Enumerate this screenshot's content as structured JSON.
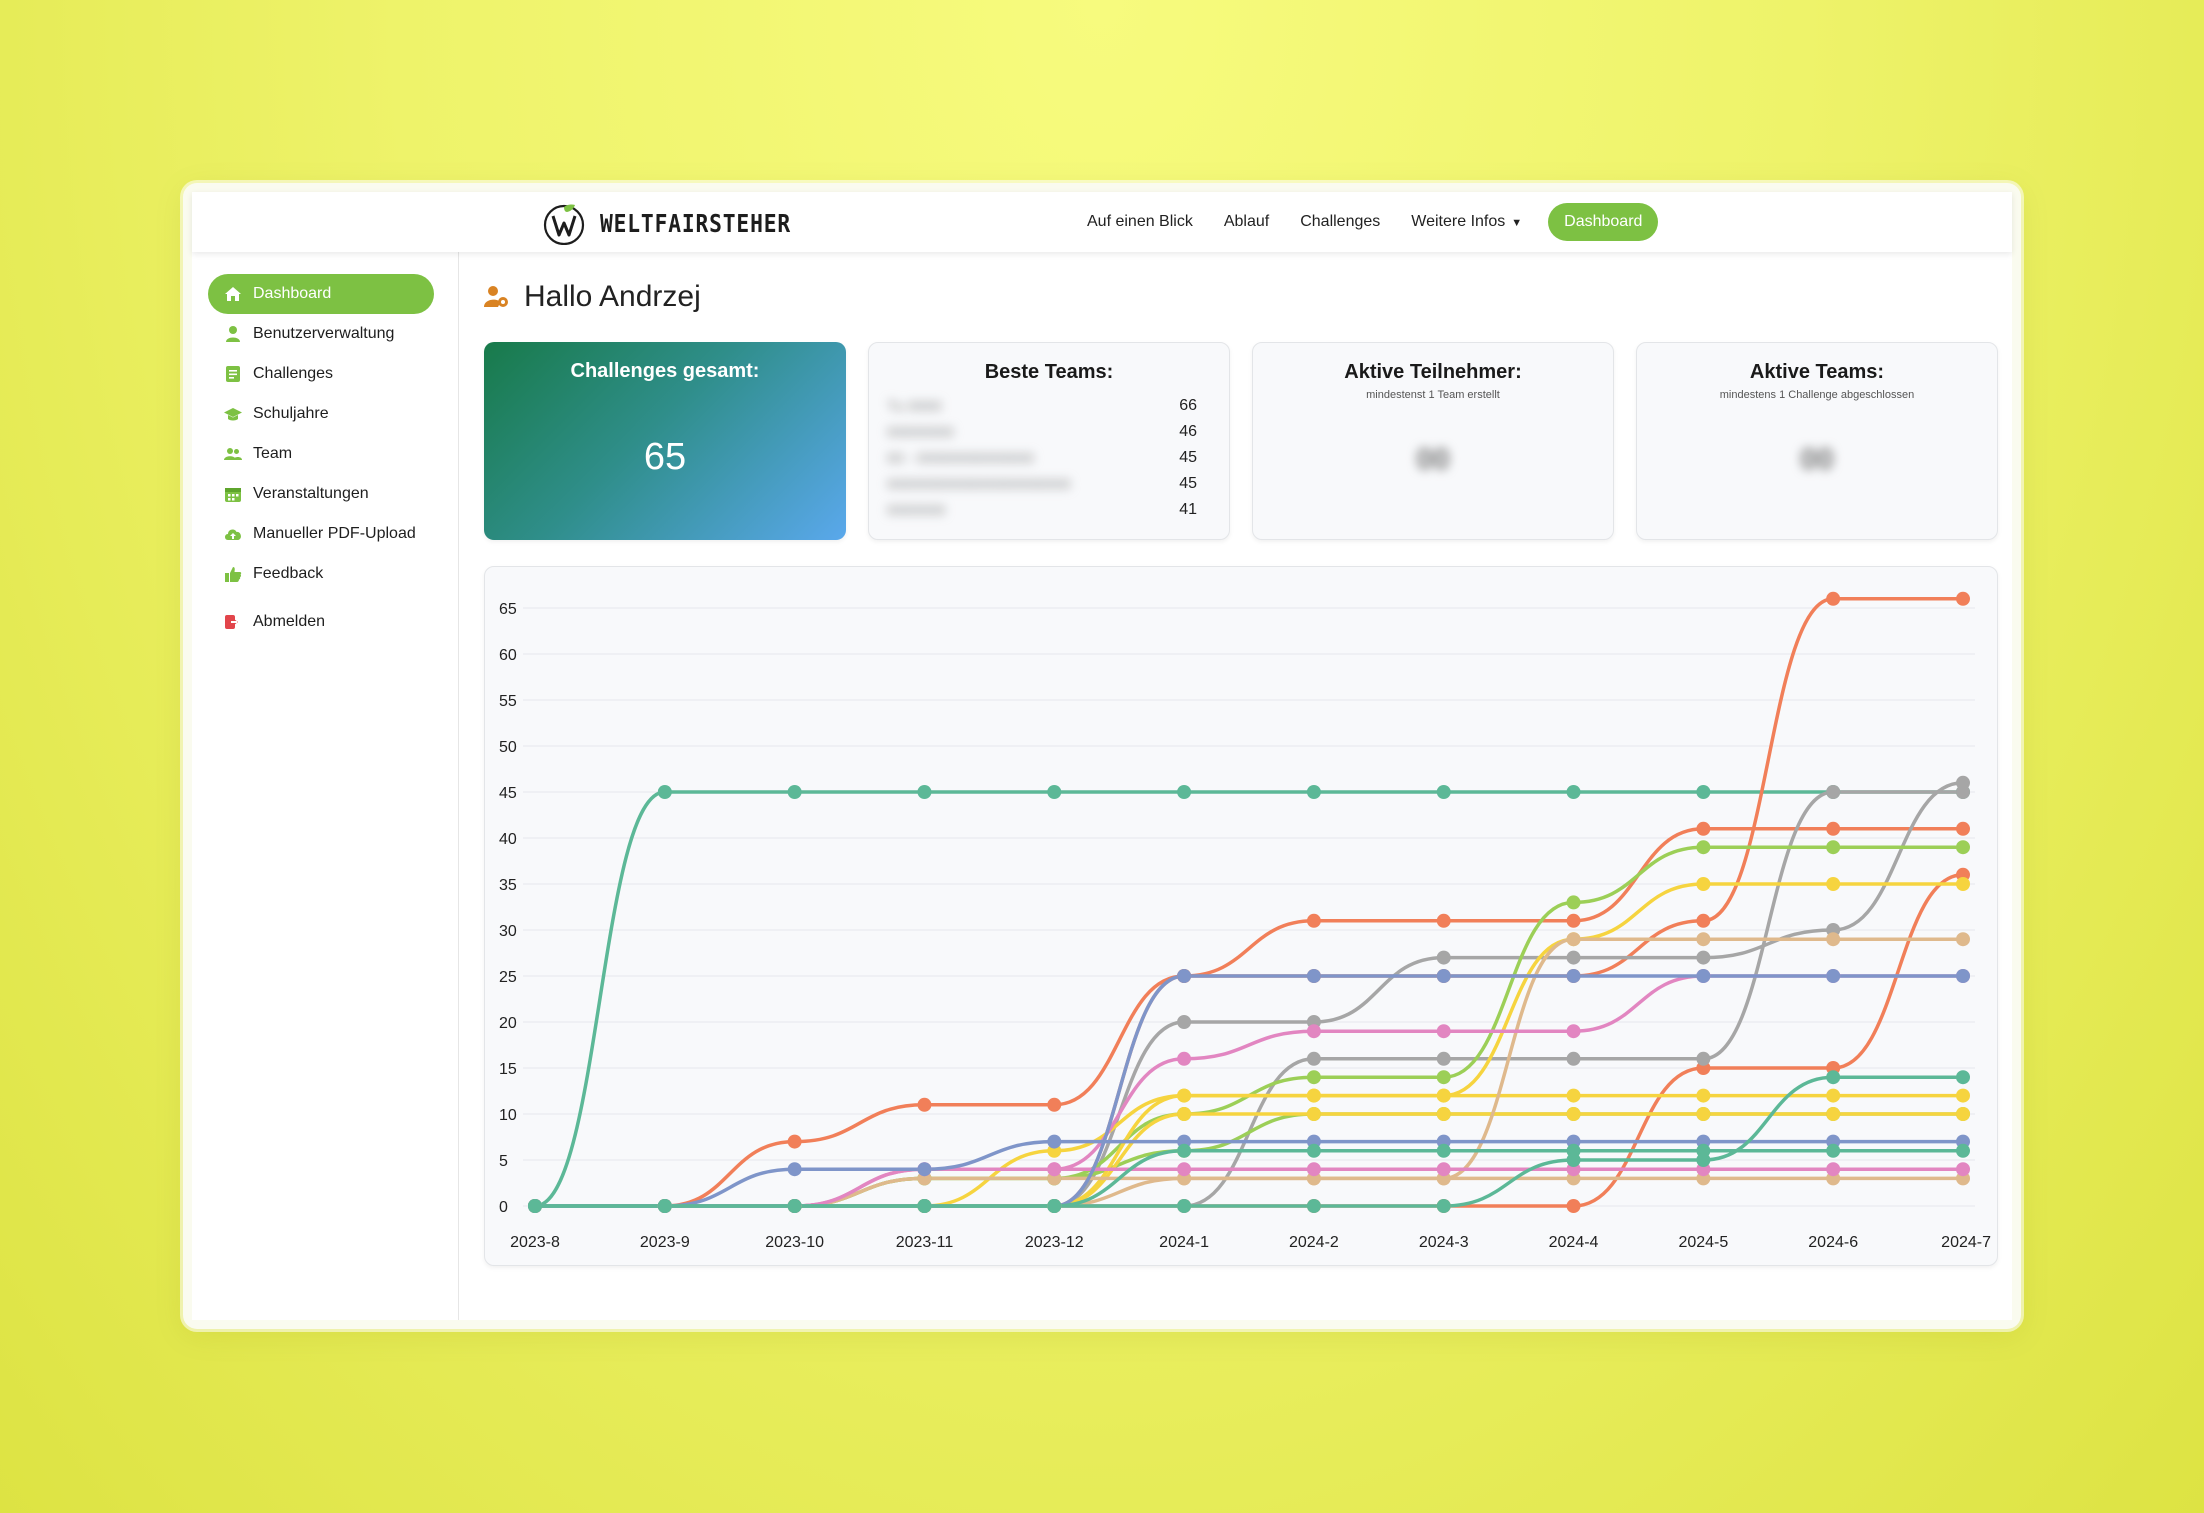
{
  "brand": {
    "name": "WELTFAIRSTEHER",
    "accent": "#7dc143"
  },
  "nav": {
    "items": [
      "Auf einen Blick",
      "Ablauf",
      "Challenges",
      "Weitere Infos"
    ],
    "cta": "Dashboard"
  },
  "sidebar": {
    "items": [
      {
        "label": "Dashboard",
        "icon": "home-icon",
        "active": true
      },
      {
        "label": "Benutzerverwaltung",
        "icon": "user-icon"
      },
      {
        "label": "Challenges",
        "icon": "document-icon"
      },
      {
        "label": "Schuljahre",
        "icon": "graduation-cap-icon"
      },
      {
        "label": "Team",
        "icon": "users-icon"
      },
      {
        "label": "Veranstaltungen",
        "icon": "calendar-icon"
      },
      {
        "label": "Manueller PDF-Upload",
        "icon": "cloud-upload-icon"
      },
      {
        "label": "Feedback",
        "icon": "thumbs-up-icon"
      }
    ],
    "logout": {
      "label": "Abmelden",
      "icon": "logout-icon"
    }
  },
  "greeting": "Hallo Andrzej",
  "cards": {
    "challenges_total": {
      "title": "Challenges gesamt:",
      "value": "65"
    },
    "best_teams": {
      "title": "Beste Teams:",
      "rows": [
        {
          "name": "Tu 0000",
          "score": "66"
        },
        {
          "name": "00000000",
          "score": "46"
        },
        {
          "name": "00 - 00000000000000",
          "score": "45"
        },
        {
          "name": "0000000000000000000000",
          "score": "45"
        },
        {
          "name": "0000000",
          "score": "41"
        }
      ]
    },
    "active_participants": {
      "title": "Aktive Teilnehmer:",
      "subtitle": "mindestenst 1 Team erstellt",
      "value": "00"
    },
    "active_teams": {
      "title": "Aktive Teams:",
      "subtitle": "mindestens 1 Challenge abgeschlossen",
      "value": "00"
    }
  },
  "chart_data": {
    "type": "line",
    "title": "",
    "xlabel": "",
    "ylabel": "",
    "categories": [
      "2023-8",
      "2023-9",
      "2023-10",
      "2023-11",
      "2023-12",
      "2024-1",
      "2024-2",
      "2024-3",
      "2024-4",
      "2024-5",
      "2024-6",
      "2024-7"
    ],
    "ylim": [
      0,
      65
    ],
    "yticks": [
      0,
      5,
      10,
      15,
      20,
      25,
      30,
      35,
      40,
      45,
      50,
      55,
      60,
      65
    ],
    "grid": true,
    "legend": "none",
    "series": [
      {
        "color": "#5cb897",
        "values": [
          0,
          45,
          45,
          45,
          45,
          45,
          45,
          45,
          45,
          45,
          45,
          45
        ]
      },
      {
        "color": "#f17f59",
        "values": [
          0,
          0,
          7,
          11,
          11,
          25,
          31,
          31,
          31,
          41,
          41,
          41
        ]
      },
      {
        "color": "#f17f59",
        "values": [
          0,
          0,
          0,
          0,
          0,
          25,
          25,
          25,
          25,
          31,
          66,
          66
        ]
      },
      {
        "color": "#f17f59",
        "values": [
          0,
          0,
          0,
          0,
          0,
          0,
          0,
          0,
          0,
          15,
          15,
          36
        ]
      },
      {
        "color": "#a6a6a6",
        "values": [
          0,
          0,
          0,
          0,
          0,
          20,
          20,
          27,
          27,
          27,
          30,
          46
        ]
      },
      {
        "color": "#a6a6a6",
        "values": [
          0,
          0,
          0,
          0,
          0,
          0,
          16,
          16,
          16,
          16,
          45,
          45
        ]
      },
      {
        "color": "#9ccf57",
        "values": [
          0,
          0,
          0,
          3,
          3,
          10,
          14,
          14,
          33,
          39,
          39,
          39
        ]
      },
      {
        "color": "#9ccf57",
        "values": [
          0,
          0,
          0,
          3,
          3,
          6,
          10,
          10,
          10,
          10,
          10,
          10
        ]
      },
      {
        "color": "#f6d43f",
        "values": [
          0,
          0,
          0,
          0,
          6,
          12,
          12,
          12,
          29,
          35,
          35,
          35
        ]
      },
      {
        "color": "#f6d43f",
        "values": [
          0,
          0,
          0,
          0,
          0,
          12,
          12,
          12,
          12,
          12,
          12,
          12
        ]
      },
      {
        "color": "#f6d43f",
        "values": [
          0,
          0,
          0,
          0,
          0,
          10,
          10,
          10,
          10,
          10,
          10,
          10
        ]
      },
      {
        "color": "#dfb98c",
        "values": [
          0,
          0,
          0,
          0,
          0,
          3,
          3,
          3,
          29,
          29,
          29,
          29
        ]
      },
      {
        "color": "#dfb98c",
        "values": [
          0,
          0,
          0,
          3,
          3,
          3,
          3,
          3,
          3,
          3,
          3,
          3
        ]
      },
      {
        "color": "#e286c1",
        "values": [
          0,
          0,
          0,
          4,
          4,
          16,
          19,
          19,
          19,
          25,
          25,
          25
        ]
      },
      {
        "color": "#e286c1",
        "values": [
          0,
          0,
          0,
          4,
          4,
          4,
          4,
          4,
          4,
          4,
          4,
          4
        ]
      },
      {
        "color": "#7f95c9",
        "values": [
          0,
          0,
          4,
          4,
          7,
          7,
          7,
          7,
          7,
          7,
          7,
          7
        ]
      },
      {
        "color": "#7f95c9",
        "values": [
          0,
          0,
          0,
          0,
          0,
          25,
          25,
          25,
          25,
          25,
          25,
          25
        ]
      },
      {
        "color": "#5cb897",
        "values": [
          0,
          0,
          0,
          0,
          0,
          6,
          6,
          6,
          6,
          6,
          6,
          6
        ]
      },
      {
        "color": "#5cb897",
        "values": [
          0,
          0,
          0,
          0,
          0,
          0,
          0,
          0,
          5,
          5,
          14,
          14
        ]
      }
    ]
  }
}
